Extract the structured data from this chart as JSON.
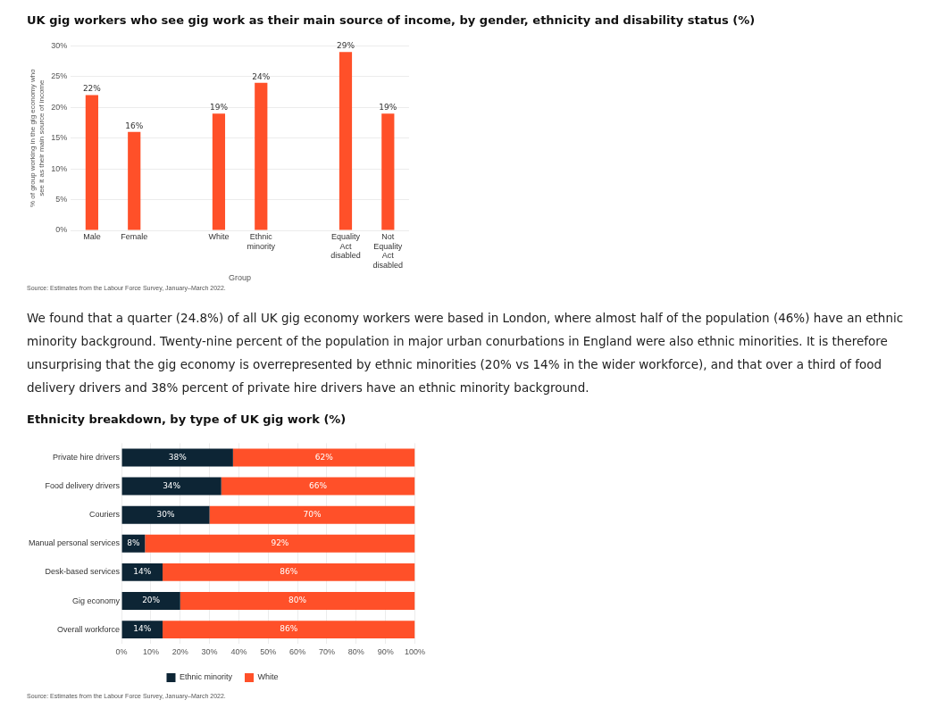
{
  "chart_data": [
    {
      "type": "bar",
      "title": "UK gig workers who see gig work as their main source of income, by gender, ethnicity and disability status (%)",
      "categories": [
        "Male",
        "Female",
        null,
        "White",
        "Ethnic minority",
        null,
        "Equality Act disabled",
        "Not Equality Act disabled"
      ],
      "values": [
        22,
        16,
        null,
        19,
        24,
        null,
        29,
        19
      ],
      "value_labels": [
        "22%",
        "16%",
        null,
        "19%",
        "24%",
        null,
        "29%",
        "19%"
      ],
      "color": "#ff5029",
      "xlabel": "Group",
      "ylabel": "% of group working in the gig economy who see it as their main source of income",
      "ylim": [
        0,
        30
      ],
      "yticks": [
        {
          "value": 0,
          "label": "0%"
        },
        {
          "value": 5,
          "label": "5%"
        },
        {
          "value": 10,
          "label": "10%"
        },
        {
          "value": 15,
          "label": "15%"
        },
        {
          "value": 20,
          "label": "20%"
        },
        {
          "value": 25,
          "label": "25%"
        },
        {
          "value": 30,
          "label": "30%"
        }
      ],
      "grid": "y",
      "annotations": [
        "Source: Estimates from the Labour Force Survey, January–March 2022."
      ]
    },
    {
      "type": "other",
      "annotations": [
        "We found that a quarter (24.8%) of all UK gig economy workers were based in London, where almost half of the population (46%) have an ethnic minority background. Twenty-nine percent of the population in major urban conurbations in England were also ethnic minorities. It is therefore unsurprising that the gig economy is overrepresented by ethnic minorities (20% vs 14% in the wider workforce), and that over a third of food delivery drivers and 38% percent of private hire drivers have an ethnic minority background."
      ]
    },
    {
      "type": "bar",
      "title": "Ethnicity breakdown, by type of UK gig work (%)",
      "orientation": "horizontal",
      "stacked": true,
      "categories": [
        "Private hire drivers",
        "Food delivery drivers",
        "Couriers",
        "Manual personal services",
        "Desk-based services",
        "Gig economy",
        "Overall workforce"
      ],
      "series": [
        {
          "name": "Ethnic minority",
          "color": "#0d2535",
          "values": [
            38,
            34,
            30,
            8,
            14,
            20,
            14
          ],
          "value_labels": [
            "38%",
            "34%",
            "30%",
            "8%",
            "14%",
            "20%",
            "14%"
          ]
        },
        {
          "name": "White",
          "color": "#ff5029",
          "values": [
            62,
            66,
            70,
            92,
            86,
            80,
            86
          ],
          "value_labels": [
            "62%",
            "66%",
            "70%",
            "92%",
            "86%",
            "80%",
            "86%"
          ]
        }
      ],
      "xlim": [
        0,
        100
      ],
      "xticks": [
        {
          "value": 0,
          "label": "0%"
        },
        {
          "value": 10,
          "label": "10%"
        },
        {
          "value": 20,
          "label": "20%"
        },
        {
          "value": 30,
          "label": "30%"
        },
        {
          "value": 40,
          "label": "40%"
        },
        {
          "value": 50,
          "label": "50%"
        },
        {
          "value": 60,
          "label": "60%"
        },
        {
          "value": 70,
          "label": "70%"
        },
        {
          "value": 80,
          "label": "80%"
        },
        {
          "value": 90,
          "label": "90%"
        },
        {
          "value": 100,
          "label": "100%"
        }
      ],
      "grid": "x",
      "legend": "bottom",
      "annotations": [
        "Source: Estimates from the Labour Force Survey, January–March 2022."
      ]
    }
  ]
}
